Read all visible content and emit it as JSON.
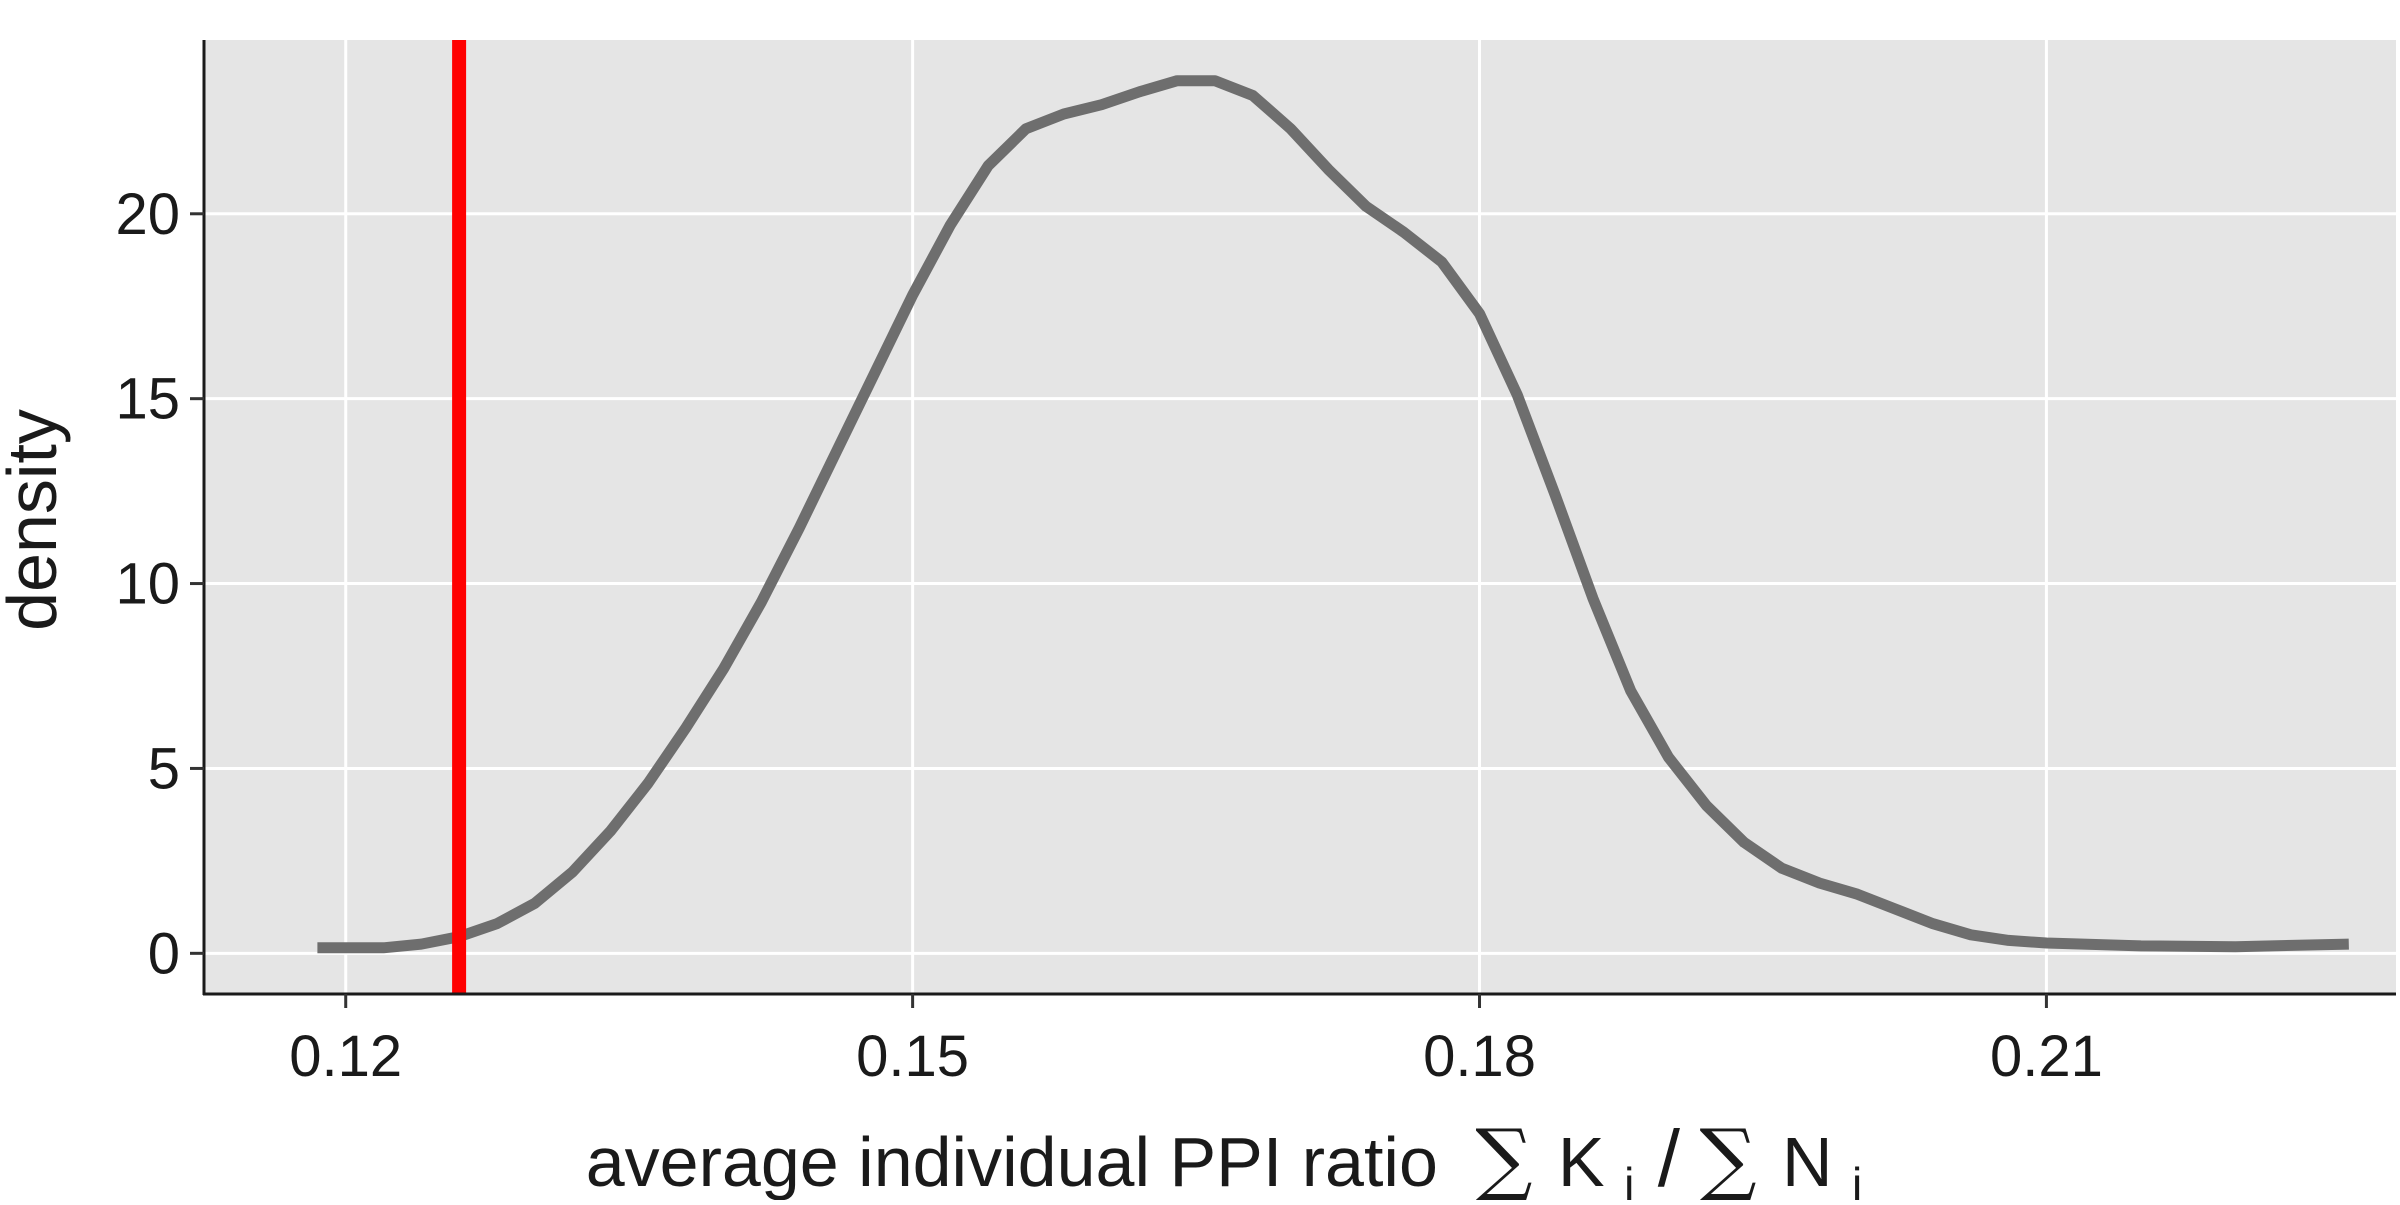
{
  "chart_data": {
    "type": "line",
    "xlabel": "average individual PPI ratio",
    "xlabel_formula": {
      "numerator_symbol": "∑",
      "numerator_var": "K",
      "numerator_sub": "i",
      "divider": "/",
      "denominator_symbol": "∑",
      "denominator_var": "N",
      "denominator_sub": "i"
    },
    "ylabel": "density",
    "xlim": [
      0.1125,
      0.2285
    ],
    "ylim": [
      -1.1,
      24.7
    ],
    "x_ticks": [
      {
        "value": 0.12,
        "label": "0.12"
      },
      {
        "value": 0.15,
        "label": "0.15"
      },
      {
        "value": 0.18,
        "label": "0.18"
      },
      {
        "value": 0.21,
        "label": "0.21"
      }
    ],
    "y_ticks": [
      {
        "value": 0,
        "label": "0"
      },
      {
        "value": 5,
        "label": "5"
      },
      {
        "value": 10,
        "label": "10"
      },
      {
        "value": 15,
        "label": "15"
      },
      {
        "value": 20,
        "label": "20"
      }
    ],
    "grid": true,
    "background": "#e5e5e5",
    "grid_color": "#ffffff",
    "series": [
      {
        "color": "#6e6e6e",
        "points": [
          [
            0.1185,
            0.15
          ],
          [
            0.122,
            0.15
          ],
          [
            0.124,
            0.25
          ],
          [
            0.126,
            0.45
          ],
          [
            0.128,
            0.8
          ],
          [
            0.13,
            1.35
          ],
          [
            0.132,
            2.2
          ],
          [
            0.134,
            3.3
          ],
          [
            0.136,
            4.6
          ],
          [
            0.138,
            6.1
          ],
          [
            0.14,
            7.7
          ],
          [
            0.142,
            9.5
          ],
          [
            0.144,
            11.5
          ],
          [
            0.146,
            13.6
          ],
          [
            0.148,
            15.7
          ],
          [
            0.15,
            17.8
          ],
          [
            0.152,
            19.7
          ],
          [
            0.154,
            21.3
          ],
          [
            0.156,
            22.3
          ],
          [
            0.158,
            22.7
          ],
          [
            0.16,
            22.95
          ],
          [
            0.162,
            23.3
          ],
          [
            0.164,
            23.6
          ],
          [
            0.166,
            23.6
          ],
          [
            0.168,
            23.2
          ],
          [
            0.17,
            22.3
          ],
          [
            0.172,
            21.2
          ],
          [
            0.174,
            20.2
          ],
          [
            0.176,
            19.5
          ],
          [
            0.178,
            18.7
          ],
          [
            0.18,
            17.3
          ],
          [
            0.182,
            15.1
          ],
          [
            0.184,
            12.4
          ],
          [
            0.186,
            9.6
          ],
          [
            0.188,
            7.1
          ],
          [
            0.19,
            5.3
          ],
          [
            0.192,
            4.0
          ],
          [
            0.194,
            3.0
          ],
          [
            0.196,
            2.3
          ],
          [
            0.198,
            1.9
          ],
          [
            0.2,
            1.6
          ],
          [
            0.202,
            1.2
          ],
          [
            0.204,
            0.8
          ],
          [
            0.206,
            0.5
          ],
          [
            0.208,
            0.35
          ],
          [
            0.21,
            0.28
          ],
          [
            0.215,
            0.2
          ],
          [
            0.22,
            0.18
          ],
          [
            0.226,
            0.25
          ]
        ]
      }
    ],
    "reference_line": {
      "x": 0.126,
      "color": "#ff0000",
      "orientation": "vertical"
    }
  }
}
